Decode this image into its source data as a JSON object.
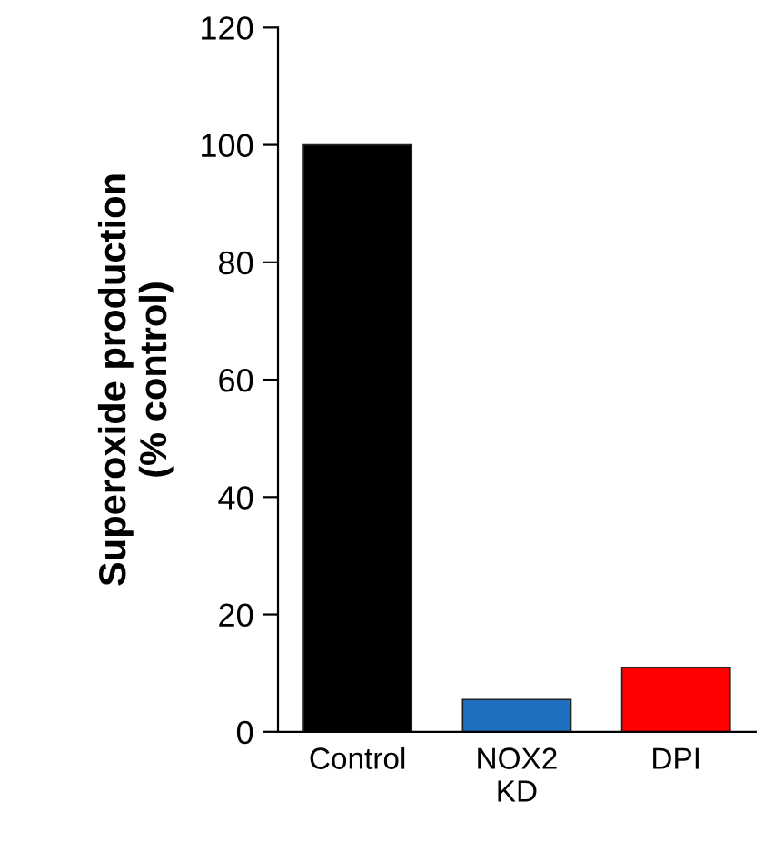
{
  "chart_data": {
    "type": "bar",
    "ylabel": "Superoxide production\n(% control)",
    "categories": [
      "Control",
      "NOX2\nKD",
      "DPI"
    ],
    "values": [
      100,
      5.5,
      11
    ],
    "colors": [
      "#000000",
      "#1f6fc0",
      "#ff0000"
    ],
    "ylim": [
      0,
      120
    ],
    "yticks": [
      0,
      20,
      40,
      60,
      80,
      100,
      120
    ],
    "grid": false,
    "legend": false
  }
}
